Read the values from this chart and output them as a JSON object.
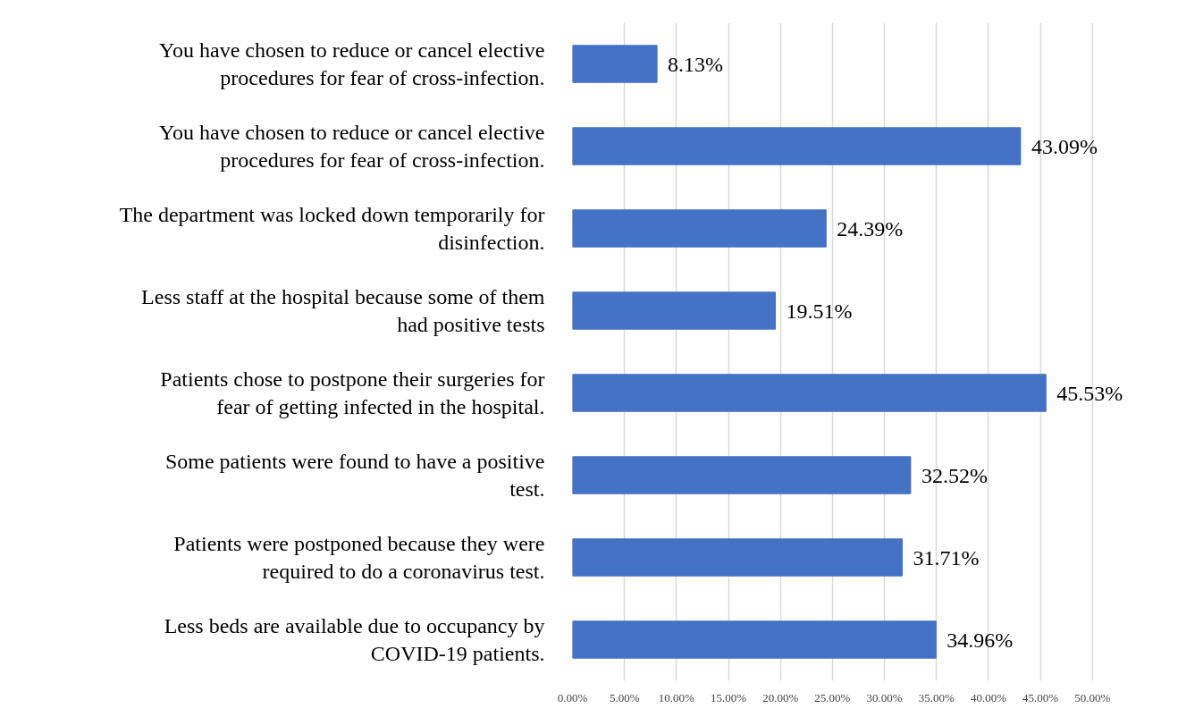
{
  "chart_data": {
    "type": "bar",
    "orientation": "horizontal",
    "categories": [
      "You have chosen to reduce or cancel elective procedures for fear of cross-infection.",
      "You have chosen to reduce or cancel elective procedures for fear of cross-infection.",
      "The department was locked down temporarily for disinfection.",
      "Less staff at the hospital because some of them had positive tests",
      "Patients chose to postpone their surgeries for fear of getting infected in the hospital.",
      "Some patients were found to have a positive test.",
      "Patients were postponed because they were required to do a coronavirus test.",
      "Less beds are available due to occupancy by COVID-19 patients."
    ],
    "values": [
      8.13,
      43.09,
      24.39,
      19.51,
      45.53,
      32.52,
      31.71,
      34.96
    ],
    "value_labels": [
      "8.13%",
      "43.09%",
      "24.39%",
      "19.51%",
      "45.53%",
      "32.52%",
      "31.71%",
      "34.96%"
    ],
    "color": "#4472c4",
    "xlim": [
      0,
      50
    ],
    "xticks": [
      {
        "value": 0,
        "label": "0.00%"
      },
      {
        "value": 5,
        "label": "5.00%"
      },
      {
        "value": 10,
        "label": "10.00%"
      },
      {
        "value": 15,
        "label": "15.00%"
      },
      {
        "value": 20,
        "label": "20.00%"
      },
      {
        "value": 25,
        "label": "25.00%"
      },
      {
        "value": 30,
        "label": "30.00%"
      },
      {
        "value": 35,
        "label": "35.00%"
      },
      {
        "value": 40,
        "label": "40.00%"
      },
      {
        "value": 45,
        "label": "45.00%"
      },
      {
        "value": 50,
        "label": "50.00%"
      }
    ],
    "grid": "x"
  }
}
